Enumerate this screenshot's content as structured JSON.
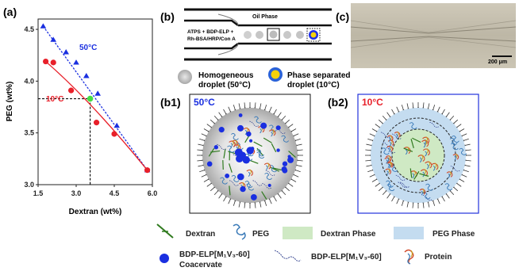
{
  "panels": {
    "a": "(a)",
    "b": "(b)",
    "c": "(c)",
    "b1": "(b1)",
    "b2": "(b2)"
  },
  "chart_data": {
    "type": "line",
    "xlabel": "Dextran (wt%)",
    "ylabel": "PEG (wt%)",
    "xlim": [
      1.5,
      6.0
    ],
    "ylim": [
      3.0,
      4.6
    ],
    "xticks": [
      "1.5",
      "3.0",
      "4.5",
      "6.0"
    ],
    "yticks": [
      "3.0",
      "3.5",
      "4.0",
      "4.5"
    ],
    "series": [
      {
        "name": "50°C",
        "color": "#1a2fe0",
        "marker": "triangle",
        "points": [
          [
            1.7,
            4.53
          ],
          [
            2.1,
            4.4
          ],
          [
            2.6,
            4.28
          ],
          [
            3.0,
            4.18
          ],
          [
            3.4,
            4.05
          ],
          [
            3.85,
            3.88
          ],
          [
            4.6,
            3.57
          ],
          [
            5.8,
            3.14
          ]
        ]
      },
      {
        "name": "10°C",
        "color": "#e8202a",
        "marker": "circle",
        "points": [
          [
            1.8,
            4.19
          ],
          [
            2.1,
            4.18
          ],
          [
            2.8,
            3.91
          ],
          [
            3.8,
            3.6
          ],
          [
            4.5,
            3.49
          ],
          [
            5.8,
            3.14
          ]
        ]
      }
    ],
    "highlight_point": {
      "x": 3.55,
      "y": 3.83,
      "color": "#44dd44"
    }
  },
  "schematic": {
    "oil_phase": "Oil Phase",
    "inlet_lines": [
      "ATPS + BDP-ELP +",
      "Rh-BSA/HRP/Con A"
    ],
    "homogeneous_label": [
      "Homogeneous",
      "droplet (50°C)"
    ],
    "phase_sep_label": [
      "Phase separated",
      "droplet (10°C)"
    ]
  },
  "micrograph": {
    "scale_bar": "200 μm"
  },
  "b1_temp": "50°C",
  "b2_temp": "10°C",
  "legend": {
    "dextran": "Dextran",
    "peg": "PEG",
    "dextran_phase": "Dextran Phase",
    "peg_phase": "PEG Phase",
    "coacervate_line1": "BDP-ELP[M₁V₃-60]",
    "coacervate_line2": "Coacervate",
    "elp": "BDP-ELP[M₁V₃-60]",
    "protein": "Protein"
  },
  "colors": {
    "blue": "#1a2fe0",
    "red": "#e8202a",
    "green_phase": "#cfe9c4",
    "blue_phase": "#c4dcf0"
  }
}
